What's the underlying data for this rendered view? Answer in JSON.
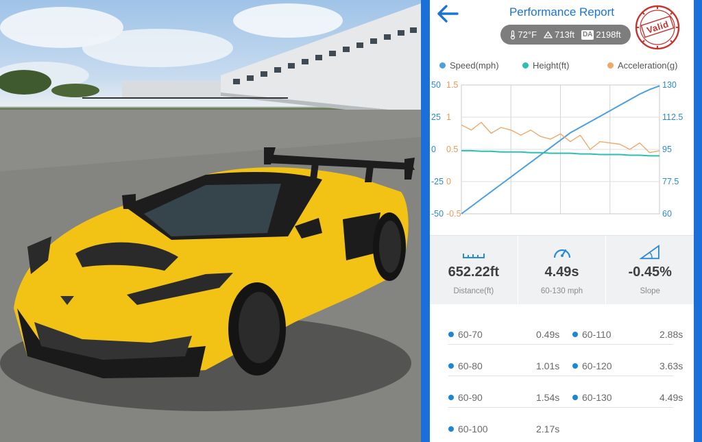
{
  "header": {
    "title": "Performance Report",
    "conditions": {
      "temperature": "72°F",
      "altitude": "713ft",
      "da_label": "DA",
      "density_altitude": "2198ft"
    },
    "stamp": "Valid"
  },
  "legend": [
    {
      "name": "Speed(mph)",
      "color": "#4a9fe0"
    },
    {
      "name": "Height(ft)",
      "color": "#2bbfb4"
    },
    {
      "name": "Acceleration(g)",
      "color": "#f0a868"
    }
  ],
  "chart_data": {
    "type": "line",
    "y_axes": {
      "height_ticks": [
        "50",
        "25",
        "0",
        "-25",
        "-50"
      ],
      "acceleration_ticks": [
        "1.5",
        "1",
        "0.5",
        "0",
        "-0.5"
      ],
      "speed_ticks": [
        "130",
        "112.5",
        "95",
        "77.5",
        "60"
      ]
    },
    "height_range": [
      -50,
      50
    ],
    "acceleration_range": [
      -0.5,
      1.5
    ],
    "speed_range": [
      60,
      130
    ],
    "grid": true,
    "series": [
      {
        "name": "Speed(mph)",
        "color": "#4a9fe0",
        "values": [
          60,
          64,
          68,
          72,
          76,
          80,
          84,
          88,
          92,
          96,
          100,
          104,
          107,
          110,
          113,
          116,
          119,
          122,
          125,
          127.5,
          129.5
        ]
      },
      {
        "name": "Height(ft)",
        "color": "#2bbfb4",
        "values": [
          -1,
          -1,
          -1.5,
          -1.5,
          -2,
          -2,
          -2,
          -2.5,
          -2.5,
          -3,
          -3,
          -3,
          -3.5,
          -3.5,
          -4,
          -4,
          -4,
          -4.5,
          -4.5,
          -5,
          -5
        ]
      },
      {
        "name": "Acceleration(g)",
        "color": "#f0a868",
        "values": [
          0.88,
          0.8,
          0.92,
          0.75,
          0.84,
          0.8,
          0.72,
          0.8,
          0.7,
          0.66,
          0.74,
          0.62,
          0.72,
          0.5,
          0.62,
          0.6,
          0.58,
          0.5,
          0.6,
          0.45,
          0.48
        ]
      }
    ]
  },
  "metrics": [
    {
      "icon": "ruler-icon",
      "value": "652.22ft",
      "label": "Distance(ft)"
    },
    {
      "icon": "speedometer-icon",
      "value": "4.49s",
      "label": "60-130 mph"
    },
    {
      "icon": "slope-icon",
      "value": "-0.45%",
      "label": "Slope"
    }
  ],
  "splits": [
    {
      "left_label": "60-70",
      "left_value": "0.49s",
      "right_label": "60-110",
      "right_value": "2.88s"
    },
    {
      "left_label": "60-80",
      "left_value": "1.01s",
      "right_label": "60-120",
      "right_value": "3.63s"
    },
    {
      "left_label": "60-90",
      "left_value": "1.54s",
      "right_label": "60-130",
      "right_value": "4.49s"
    },
    {
      "left_label": "60-100",
      "left_value": "2.17s",
      "right_label": "",
      "right_value": ""
    }
  ],
  "colors": {
    "accent": "#1a74d8",
    "frame": "#1a6fd8",
    "car": "#f2c315"
  }
}
